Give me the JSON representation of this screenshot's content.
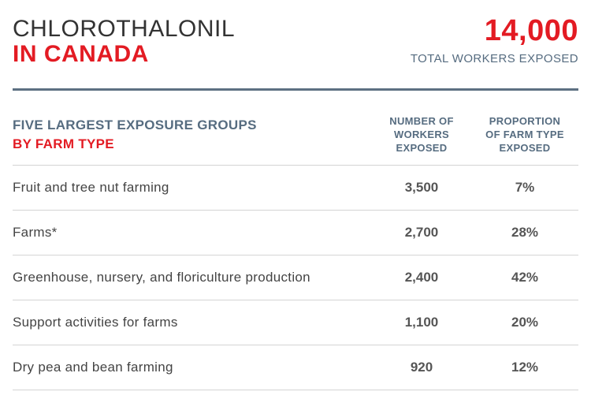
{
  "header": {
    "title_line1": "CHLOROTHALONIL",
    "title_line2": "IN CANADA",
    "total_value": "14,000",
    "total_caption": "TOTAL WORKERS EXPOSED"
  },
  "table": {
    "group_heading_line1": "FIVE LARGEST EXPOSURE GROUPS",
    "group_heading_line2": "BY FARM TYPE",
    "col_workers": [
      "NUMBER OF",
      "WORKERS",
      "EXPOSED"
    ],
    "col_proportion": [
      "PROPORTION",
      "OF FARM TYPE",
      "EXPOSED"
    ],
    "rows": [
      {
        "label": "Fruit and tree nut farming",
        "workers": "3,500",
        "proportion": "7%"
      },
      {
        "label": "Farms*",
        "workers": "2,700",
        "proportion": "28%"
      },
      {
        "label": "Greenhouse, nursery, and floriculture production",
        "workers": "2,400",
        "proportion": "42%"
      },
      {
        "label": "Support activities for farms",
        "workers": "1,100",
        "proportion": "20%"
      },
      {
        "label": "Dry pea and bean farming",
        "workers": "920",
        "proportion": "12%"
      }
    ]
  },
  "colors": {
    "accent_red": "#e31b23",
    "slate": "#566c80",
    "text": "#444444"
  }
}
